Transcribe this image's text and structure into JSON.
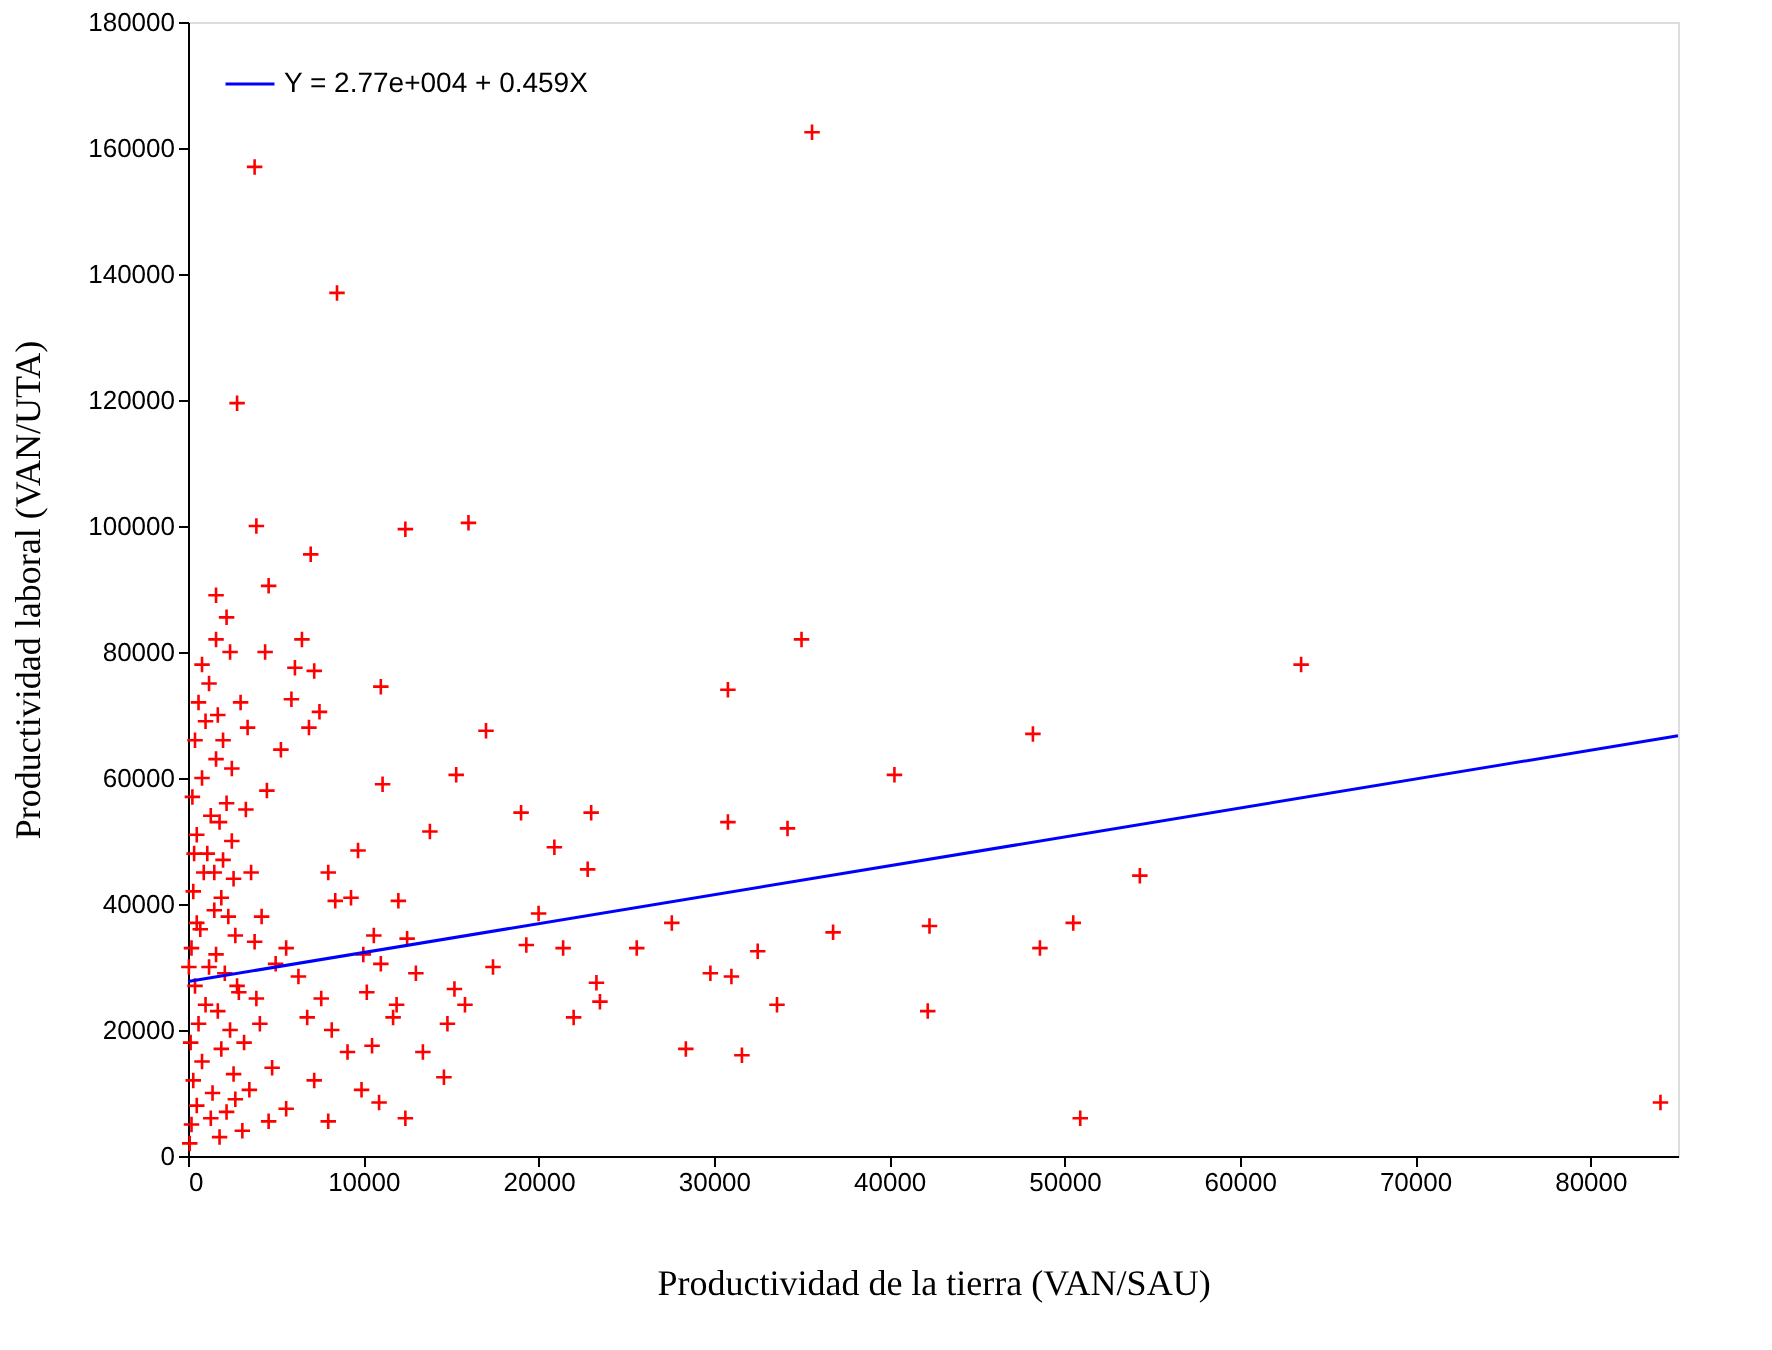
{
  "chart_data": {
    "type": "scatter",
    "xlabel": "Productividad de la tierra (VAN/SAU)",
    "ylabel": "Productividad laboral (VAN/UTA)",
    "xlim": [
      0,
      85000
    ],
    "xticks": [
      0,
      10000,
      20000,
      30000,
      40000,
      50000,
      60000,
      70000,
      80000
    ],
    "ylim": [
      0,
      180000
    ],
    "yticks": [
      0,
      20000,
      40000,
      60000,
      80000,
      100000,
      120000,
      140000,
      160000,
      180000
    ],
    "grid": false,
    "legend": "top left",
    "series": [
      {
        "color": "#ff0000",
        "marker": "cross",
        "x": [
          35600,
          3800,
          8500,
          2800,
          3900,
          12400,
          16000,
          7000,
          4600,
          1600,
          2200,
          1600,
          6500,
          35000,
          63500,
          48200,
          30800,
          11000,
          17000,
          40300,
          15300,
          11100,
          19000,
          23000,
          30800,
          34200,
          13800,
          20900,
          22800,
          54300,
          50500,
          42300,
          36800,
          27600,
          20000,
          48600,
          32500,
          29800,
          31000,
          23300,
          17400,
          19300,
          21400,
          25600,
          22000,
          23500,
          33600,
          42200,
          28400,
          31600,
          50900,
          84000,
          12400,
          14600,
          15200,
          14800,
          15800,
          9900,
          10900,
          8000,
          12000,
          9700,
          8000,
          7200,
          6100,
          5900,
          7500,
          5300,
          4500,
          6900,
          4400,
          3000,
          3400,
          2500,
          2400,
          8400,
          9300,
          10000,
          10600,
          11000,
          12500,
          13000,
          11900,
          10200,
          7600,
          6300,
          5000,
          4200,
          5600,
          6800,
          7200,
          4800,
          3500,
          4600,
          5600,
          9100,
          8200,
          3900,
          2800,
          11700,
          10500,
          13400,
          200,
          500,
          300,
          800,
          150,
          600,
          1000,
          400,
          1200,
          200,
          700,
          1500,
          300,
          900,
          1100,
          500,
          1300,
          250,
          800,
          1600,
          400,
          1000,
          600,
          1200,
          800,
          1800,
          2200,
          1400,
          2600,
          1900,
          2400,
          1700,
          2900,
          2100,
          1600,
          2700,
          2300,
          1900,
          2600,
          2000,
          2500,
          1800,
          2200,
          1500,
          100,
          50,
          350,
          3200,
          3600,
          3300,
          2000,
          1700,
          3800,
          3100,
          4100,
          2700,
          1300,
          500
        ],
        "values": [
          162500,
          157000,
          137000,
          119500,
          100000,
          99500,
          100500,
          95500,
          90500,
          89000,
          85500,
          82000,
          82000,
          82000,
          78000,
          67000,
          74000,
          74500,
          67500,
          60500,
          60500,
          59000,
          54500,
          54500,
          53000,
          52000,
          51500,
          49000,
          45500,
          44500,
          37000,
          36500,
          35500,
          37000,
          38500,
          33000,
          32500,
          29000,
          28500,
          27500,
          30000,
          33500,
          33000,
          33000,
          22000,
          24500,
          24000,
          23000,
          17000,
          16000,
          6000,
          8500,
          6000,
          12500,
          26500,
          21000,
          24000,
          10500,
          8500,
          5500,
          40500,
          48500,
          45000,
          77000,
          77500,
          72500,
          70500,
          64500,
          58000,
          68000,
          80000,
          72000,
          68000,
          61500,
          80000,
          40500,
          41000,
          32000,
          35000,
          30500,
          34500,
          29000,
          24000,
          26000,
          25000,
          28500,
          30500,
          38000,
          33000,
          22000,
          12000,
          14000,
          10500,
          5500,
          7500,
          16500,
          20000,
          25000,
          27000,
          22000,
          17500,
          16500,
          5000,
          8000,
          12000,
          15000,
          18000,
          21000,
          24000,
          27000,
          30000,
          33000,
          36000,
          39000,
          42000,
          45000,
          48000,
          51000,
          54000,
          57000,
          60000,
          63000,
          66000,
          69000,
          72000,
          75000,
          78000,
          3000,
          7000,
          10000,
          13000,
          17000,
          20000,
          23000,
          26000,
          29000,
          32000,
          35000,
          38000,
          41000,
          44000,
          47000,
          50000,
          53000,
          56000,
          45000,
          2000,
          30000,
          48000,
          18000,
          45000,
          55000,
          66000,
          70000,
          34000,
          4000,
          21000,
          9000,
          6000,
          37000
        ]
      },
      {
        "type": "line",
        "name": "Y = 2.77e+004 + 0.459X",
        "color": "#0000ff",
        "marker": "none",
        "x": [
          0,
          85000
        ],
        "values": [
          27700,
          66700
        ]
      }
    ]
  }
}
